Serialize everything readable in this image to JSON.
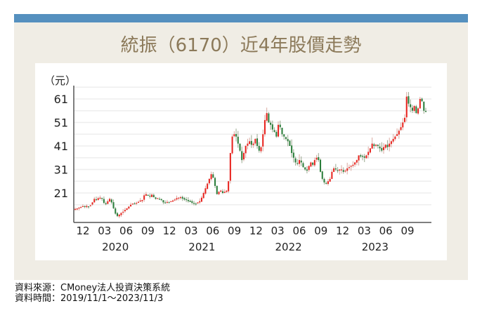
{
  "header": {
    "title": "統振（6170）近4年股價走勢",
    "bar_color": "#5590bf",
    "panel_color": "#f0ede5",
    "title_color": "#8c7a5a"
  },
  "footer": {
    "source": "資料來源：CMoney法人投資決策系統",
    "period": "資料時間：2019/11/1～2023/11/3"
  },
  "chart_data": {
    "type": "candlestick",
    "title": "統振（6170）近4年股價走勢",
    "ylabel": "（元）",
    "xlabel": "",
    "ylim": [
      8.5,
      66.7
    ],
    "y_ticks": [
      21,
      31,
      41,
      51,
      61
    ],
    "minor_gridlines": [
      16,
      26,
      36,
      46,
      56,
      66
    ],
    "grid": true,
    "x_ticks": [
      "12",
      "03",
      "06",
      "09",
      "12",
      "03",
      "06",
      "09",
      "12",
      "03",
      "06",
      "09",
      "12",
      "03",
      "06",
      "09"
    ],
    "year_labels": [
      {
        "label": "2020",
        "at_tick": 1.5
      },
      {
        "label": "2021",
        "at_tick": 5.5
      },
      {
        "label": "2022",
        "at_tick": 9.5
      },
      {
        "label": "2023",
        "at_tick": 13.5
      }
    ],
    "date_range": [
      "2019/11/1",
      "2023/11/3"
    ],
    "colors": {
      "up": "#e8231e",
      "down": "#2a7d3a",
      "wick_up": "#d9a9a0",
      "wick_down": "#9aa88f"
    },
    "approx_weekly_close": [
      14.2,
      14.4,
      14.8,
      15.0,
      15.4,
      15.2,
      15.5,
      15.3,
      15.8,
      17.0,
      18.5,
      18.2,
      18.8,
      19.0,
      18.6,
      16.8,
      16.2,
      17.5,
      18.5,
      17.0,
      14.5,
      12.2,
      11.2,
      11.8,
      12.5,
      13.0,
      13.8,
      14.5,
      15.2,
      16.0,
      16.5,
      16.4,
      16.8,
      17.2,
      17.8,
      18.0,
      20.0,
      20.5,
      19.8,
      19.5,
      20.3,
      19.2,
      18.5,
      18.8,
      18.5,
      18.0,
      17.0,
      16.8,
      17.2,
      17.0,
      17.5,
      17.8,
      18.2,
      18.8,
      19.0,
      19.2,
      18.6,
      18.2,
      18.0,
      17.5,
      17.2,
      16.8,
      16.5,
      16.5,
      17.0,
      17.5,
      19.0,
      21.0,
      23.0,
      25.0,
      27.0,
      29.0,
      27.5,
      24.0,
      20.5,
      21.5,
      22.0,
      21.0,
      21.5,
      22.0,
      26.0,
      38.0,
      45.0,
      46.0,
      45.0,
      42.0,
      39.0,
      35.0,
      38.0,
      41.0,
      42.0,
      43.0,
      41.5,
      42.0,
      44.0,
      41.0,
      39.0,
      40.5,
      46.0,
      52.0,
      55.0,
      51.0,
      50.0,
      48.0,
      47.0,
      45.0,
      50.0,
      49.0,
      46.0,
      45.0,
      44.0,
      43.0,
      41.0,
      38.0,
      36.0,
      34.0,
      33.5,
      35.0,
      34.0,
      32.0,
      31.0,
      30.5,
      32.5,
      34.0,
      33.0,
      35.0,
      36.0,
      35.0,
      30.0,
      27.0,
      25.5,
      25.0,
      26.0,
      27.0,
      30.0,
      31.5,
      31.0,
      30.5,
      31.0,
      31.0,
      30.0,
      30.5,
      31.5,
      32.0,
      32.5,
      33.0,
      34.0,
      35.0,
      37.0,
      36.5,
      36.5,
      36.0,
      37.0,
      38.5,
      40.0,
      42.0,
      41.0,
      41.5,
      41.0,
      40.0,
      39.0,
      40.5,
      41.5,
      40.5,
      42.0,
      43.0,
      44.0,
      45.0,
      46.0,
      47.5,
      49.0,
      51.0,
      53.0,
      62.0,
      59.0,
      57.5,
      56.0,
      58.0,
      55.0,
      57.0,
      61.0,
      60.0,
      56.0,
      55.5
    ]
  }
}
